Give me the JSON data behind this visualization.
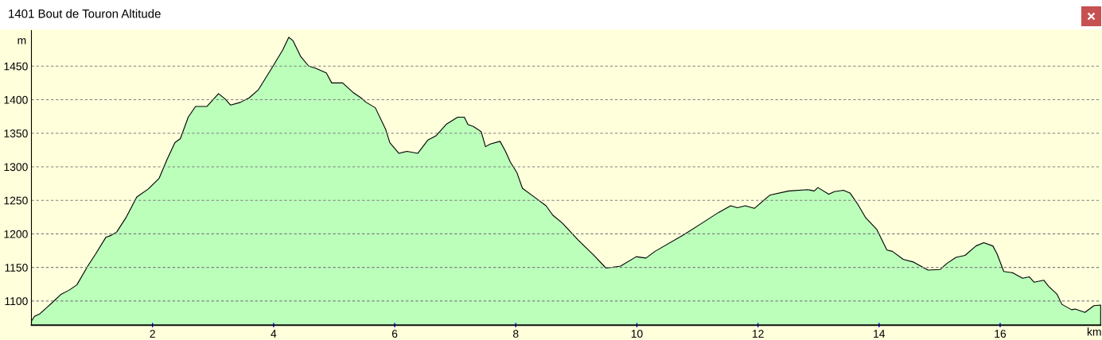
{
  "chart_data": {
    "type": "area",
    "title": "1401 Bout de Touron Altitude",
    "xlabel": "km",
    "ylabel": "m",
    "x": [
      0,
      0.05,
      0.14,
      0.25,
      0.36,
      0.49,
      0.62,
      0.75,
      0.93,
      1.06,
      1.23,
      1.32,
      1.41,
      1.56,
      1.74,
      1.93,
      2.11,
      2.24,
      2.37,
      2.46,
      2.59,
      2.71,
      2.9,
      3.09,
      3.2,
      3.29,
      3.45,
      3.6,
      3.75,
      3.86,
      3.99,
      4.15,
      4.25,
      4.32,
      4.45,
      4.58,
      4.69,
      4.87,
      4.96,
      5.14,
      5.31,
      5.44,
      5.53,
      5.68,
      5.85,
      5.92,
      6.07,
      6.2,
      6.38,
      6.55,
      6.68,
      6.86,
      7.04,
      7.15,
      7.21,
      7.3,
      7.37,
      7.43,
      7.5,
      7.58,
      7.74,
      7.83,
      7.91,
      8.02,
      8.11,
      8.29,
      8.5,
      8.61,
      8.77,
      9.03,
      9.29,
      9.49,
      9.73,
      9.99,
      10.15,
      10.3,
      10.78,
      11.04,
      11.35,
      11.55,
      11.66,
      11.79,
      11.94,
      12.2,
      12.51,
      12.82,
      12.93,
      12.99,
      13.17,
      13.26,
      13.41,
      13.52,
      13.65,
      13.78,
      13.96,
      14.13,
      14.22,
      14.4,
      14.57,
      14.81,
      15.01,
      15.12,
      15.27,
      15.42,
      15.6,
      15.73,
      15.88,
      15.95,
      16.06,
      16.21,
      16.37,
      16.48,
      16.56,
      16.72,
      16.8,
      16.94,
      17.02,
      17.18,
      17.24,
      17.4,
      17.55,
      17.66
    ],
    "values": [
      1070,
      1077,
      1081,
      1090,
      1099,
      1110,
      1116,
      1124,
      1152,
      1170,
      1195,
      1198,
      1203,
      1224,
      1255,
      1267,
      1283,
      1311,
      1336,
      1342,
      1374,
      1390,
      1390,
      1409,
      1401,
      1392,
      1396,
      1403,
      1415,
      1431,
      1450,
      1474,
      1493,
      1488,
      1464,
      1450,
      1447,
      1440,
      1425,
      1425,
      1411,
      1403,
      1396,
      1388,
      1356,
      1336,
      1320,
      1323,
      1320,
      1340,
      1346,
      1364,
      1374,
      1374,
      1363,
      1360,
      1356,
      1352,
      1330,
      1334,
      1338,
      1323,
      1307,
      1291,
      1268,
      1256,
      1242,
      1228,
      1216,
      1191,
      1168,
      1149,
      1152,
      1166,
      1164,
      1174,
      1199,
      1214,
      1232,
      1242,
      1239,
      1242,
      1238,
      1258,
      1264,
      1266,
      1264,
      1269,
      1259,
      1263,
      1265,
      1261,
      1244,
      1224,
      1207,
      1176,
      1174,
      1162,
      1158,
      1146,
      1147,
      1156,
      1165,
      1168,
      1182,
      1187,
      1182,
      1170,
      1144,
      1142,
      1134,
      1136,
      1128,
      1131,
      1122,
      1110,
      1095,
      1087,
      1088,
      1083,
      1093,
      1094
    ],
    "color": "#bbffbb",
    "xlim": [
      0,
      17.66
    ],
    "ylim": [
      1064,
      1503
    ],
    "xticks": [
      2,
      4,
      6,
      8,
      10,
      12,
      14,
      16
    ],
    "yticks": [
      1100,
      1150,
      1200,
      1250,
      1300,
      1350,
      1400,
      1450
    ],
    "grid": "y"
  }
}
